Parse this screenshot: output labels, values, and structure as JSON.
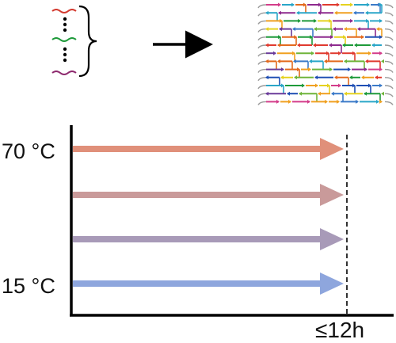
{
  "labels": {
    "temp_high": "70 °C",
    "temp_low": "15 °C",
    "time": "≤12h"
  },
  "arrows": [
    {
      "name": "arrow-70c",
      "color": "#e0907a"
    },
    {
      "name": "arrow-mid-high",
      "color": "#c99a9a"
    },
    {
      "name": "arrow-mid-low",
      "color": "#a89ab8"
    },
    {
      "name": "arrow-15c",
      "color": "#8ea6dd"
    }
  ],
  "strand_colors": [
    "#e03a2f",
    "#1e9a3a",
    "#1f4fb4",
    "#8e2a8e",
    "#f0a020",
    "#2aa6c8",
    "#d33c8a",
    "#6fb43a",
    "#e5d21f",
    "#6a3a9a",
    "#e36a1e",
    "#3b7ac8"
  ],
  "icons": {
    "staples": "dna-staple-strands-icon",
    "brace": "curly-brace-icon",
    "arrow": "right-arrow-icon",
    "origami": "dna-origami-tile-icon"
  }
}
